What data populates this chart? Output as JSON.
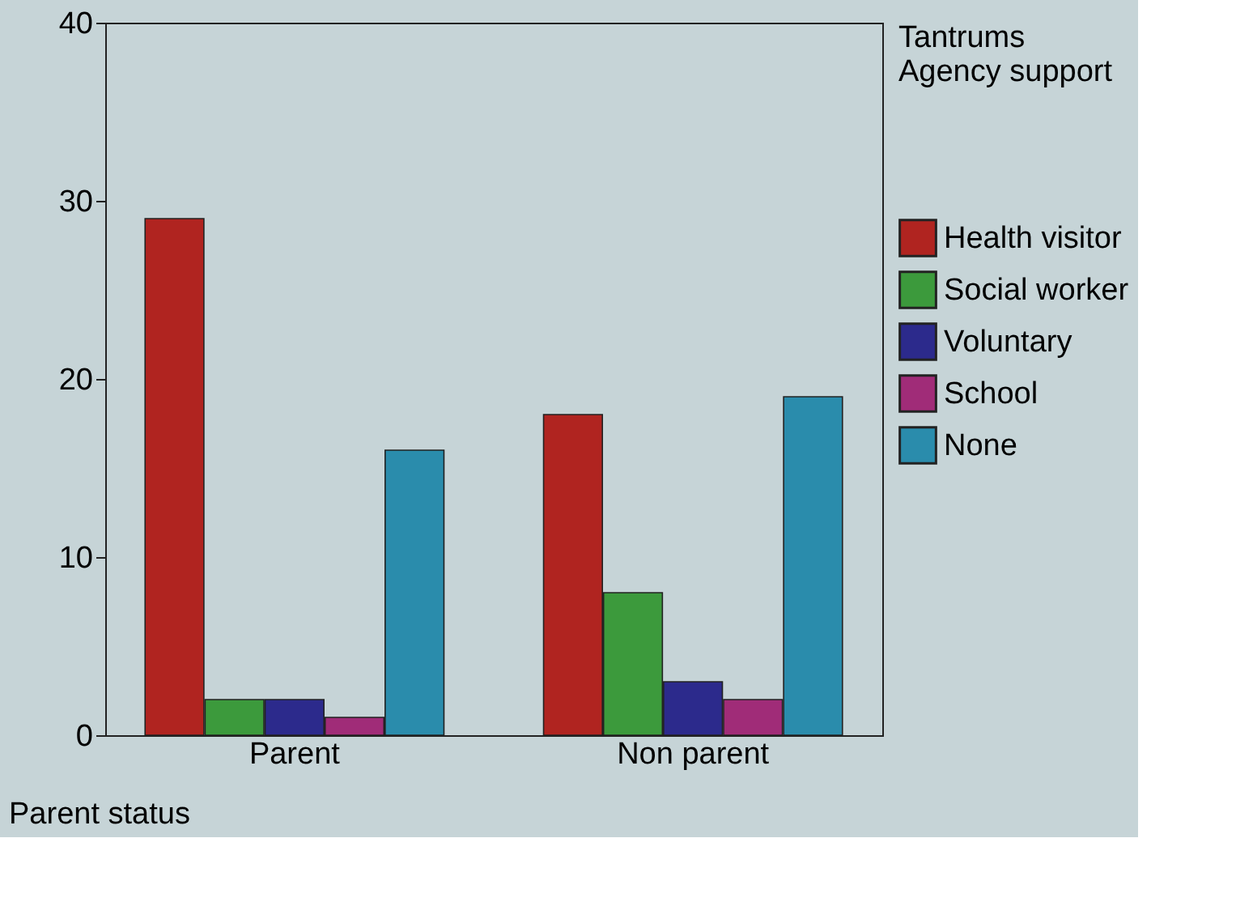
{
  "chart_data": {
    "type": "bar",
    "title": "Tantrums",
    "legend_title": "Agency support",
    "xlabel": "Parent status",
    "categories": [
      "Parent",
      "Non parent"
    ],
    "series": [
      {
        "name": "Health visitor",
        "color": "#b02420",
        "values": [
          29,
          18
        ]
      },
      {
        "name": "Social worker",
        "color": "#3c9a3c",
        "values": [
          2,
          8
        ]
      },
      {
        "name": "Voluntary",
        "color": "#2c2a8c",
        "values": [
          2,
          3
        ]
      },
      {
        "name": "School",
        "color": "#a02c78",
        "values": [
          1,
          2
        ]
      },
      {
        "name": "None",
        "color": "#2a8cac",
        "values": [
          16,
          19
        ]
      }
    ],
    "ylim": [
      0,
      40
    ],
    "yticks": [
      0,
      10,
      20,
      30,
      40
    ],
    "grid": false,
    "legend": "right"
  }
}
